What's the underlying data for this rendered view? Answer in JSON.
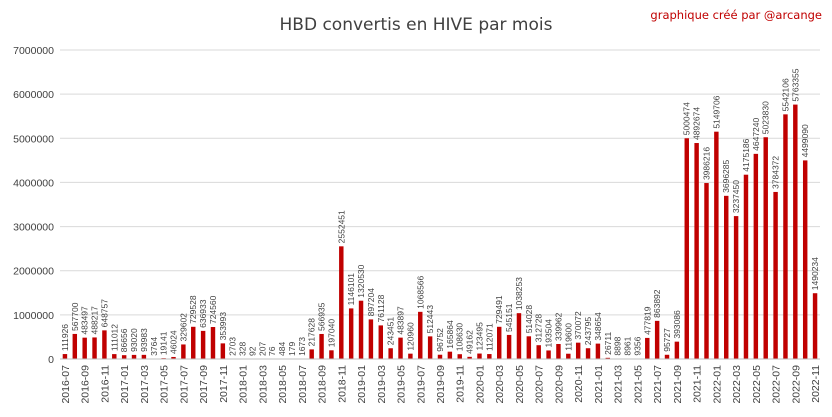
{
  "chart_data": {
    "type": "bar",
    "title": "HBD convertis en HIVE par mois",
    "credit": "graphique créé par @arcange",
    "xlabel": "",
    "ylabel": "",
    "ylim": [
      0,
      7000000
    ],
    "yticks": [
      "0",
      "1000000",
      "2000000",
      "3000000",
      "4000000",
      "5000000",
      "6000000",
      "7000000"
    ],
    "ytick_values": [
      0,
      1000000,
      2000000,
      3000000,
      4000000,
      5000000,
      6000000,
      7000000
    ],
    "grid": true,
    "legend": "none",
    "bar_color": "#c00000",
    "categories": [
      "2016-07",
      "2016-08",
      "2016-09",
      "2016-10",
      "2016-11",
      "2016-12",
      "2017-01",
      "2017-02",
      "2017-03",
      "2017-04",
      "2017-05",
      "2017-06",
      "2017-07",
      "2017-08",
      "2017-09",
      "2017-10",
      "2017-11",
      "2017-12",
      "2018-01",
      "2018-02",
      "2018-03",
      "2018-04",
      "2018-05",
      "2018-06",
      "2018-07",
      "2018-08",
      "2018-09",
      "2018-10",
      "2018-11",
      "2018-12",
      "2019-01",
      "2019-02",
      "2019-03",
      "2019-04",
      "2019-05",
      "2019-06",
      "2019-07",
      "2019-08",
      "2019-09",
      "2019-10",
      "2019-11",
      "2019-12",
      "2020-01",
      "2020-02",
      "2020-03",
      "2020-04",
      "2020-05",
      "2020-06",
      "2020-07",
      "2020-08",
      "2020-09",
      "2020-10",
      "2020-11",
      "2020-12",
      "2021-01",
      "2021-02",
      "2021-03",
      "2021-04",
      "2021-05",
      "2021-06",
      "2021-07",
      "2021-08",
      "2021-09",
      "2021-10",
      "2021-11",
      "2021-12",
      "2022-01",
      "2022-02",
      "2022-03",
      "2022-04",
      "2022-05",
      "2022-06",
      "2022-07",
      "2022-08",
      "2022-09",
      "2022-10",
      "2022-11"
    ],
    "x_tick_labels": [
      "2016-07",
      "2016-09",
      "2016-11",
      "2017-01",
      "2017-03",
      "2017-05",
      "2017-07",
      "2017-09",
      "2017-11",
      "2018-01",
      "2018-03",
      "2018-05",
      "2018-07",
      "2018-09",
      "2018-11",
      "2019-01",
      "2019-03",
      "2019-05",
      "2019-07",
      "2019-09",
      "2019-11",
      "2020-01",
      "2020-03",
      "2020-05",
      "2020-07",
      "2020-09",
      "2020-11",
      "2021-01",
      "2021-03",
      "2021-05",
      "2021-07",
      "2021-09",
      "2021-11",
      "2022-01",
      "2022-03",
      "2022-05",
      "2022-07",
      "2022-09",
      "2022-11"
    ],
    "values": [
      111926,
      567700,
      483497,
      488217,
      648757,
      111012,
      86656,
      93020,
      93983,
      3764,
      19141,
      46024,
      329602,
      729528,
      636933,
      724560,
      353993,
      2703,
      328,
      92,
      207,
      76,
      484,
      179,
      1673,
      217628,
      566935,
      197040,
      2552451,
      1146101,
      1320530,
      897204,
      761128,
      243451,
      483897,
      120960,
      1068566,
      512443,
      96752,
      165864,
      108630,
      49162,
      123495,
      112071,
      729491,
      545151,
      1038253,
      514028,
      312728,
      193504,
      339962,
      119600,
      370072,
      243795,
      348654,
      26711,
      8898,
      8961,
      9356,
      477819,
      863892,
      95727,
      393086,
      5000474,
      4892674,
      3986216,
      5149706,
      3696285,
      3237450,
      4175186,
      4647240,
      5023830,
      3784372,
      5542106,
      5763355,
      4499090,
      1490234
    ],
    "data_labels": [
      "111926",
      "567700",
      "483497",
      "488217",
      "648757",
      "111012",
      "86656",
      "93020",
      "93983",
      "3764",
      "19141",
      "46024",
      "329602",
      "729528",
      "636933",
      "724560",
      "353993",
      "2703",
      "328",
      "92",
      "207",
      "76",
      "484",
      "179",
      "1673",
      "217628",
      "566935",
      "197040",
      "2552451",
      "1146101",
      "1320530",
      "897204",
      "761128",
      "243451",
      "483897",
      "120960",
      "1068566",
      "512443",
      "96752",
      "165864",
      "108630",
      "49162",
      "123495",
      "112071",
      "729491",
      "545151",
      "1038253",
      "514028",
      "312728",
      "193504",
      "339962",
      "119600",
      "370072",
      "243795",
      "348654",
      "26711",
      "8898",
      "8961",
      "9356",
      "477819",
      "863892",
      "95727",
      "393086",
      "5000474",
      "4892674",
      "3986216",
      "5149706",
      "3696285",
      "3237450",
      "4175186",
      "4647240",
      "5023830",
      "3784372",
      "5542106",
      "5763355",
      "4499090",
      "1490234"
    ]
  }
}
